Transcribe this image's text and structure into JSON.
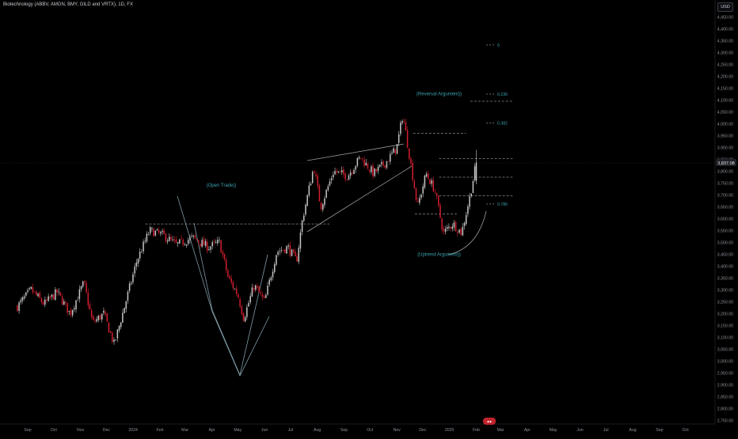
{
  "header": {
    "title": "Biotechnology (ABBV, AMGN, BMY, GILD and VRTX), 1D, FX",
    "currency": "USD"
  },
  "colors": {
    "background": "#000000",
    "up": "#c7c7c7",
    "down": "#d21e2e",
    "annotation": "#3aa3b0",
    "line": "#9a9a9a",
    "price_tag": "#1f2025"
  },
  "current_price": "3,837.08",
  "chart_data": {
    "type": "candlestick",
    "x_tick_labels": [
      "Sep",
      "Oct",
      "Nov",
      "Dec",
      "2024",
      "Feb",
      "Mar",
      "Apr",
      "May",
      "Jun",
      "Jul",
      "Aug",
      "Sep",
      "Oct",
      "Nov",
      "Dec",
      "2025",
      "Feb",
      "Mar",
      "Apr",
      "May",
      "Jun",
      "Jul",
      "Aug",
      "Sep",
      "Oct"
    ],
    "y_tick_labels": [
      "4,450.00",
      "4,400.00",
      "4,350.00",
      "4,300.00",
      "4,250.00",
      "4,200.00",
      "4,150.00",
      "4,100.00",
      "4,050.00",
      "4,000.00",
      "3,950.00",
      "3,900.00",
      "3,850.00",
      "3,800.00",
      "3,750.00",
      "3,700.00",
      "3,650.00",
      "3,600.00",
      "3,550.00",
      "3,500.00",
      "3,450.00",
      "3,400.00",
      "3,350.00",
      "3,300.00",
      "3,250.00",
      "3,200.00",
      "3,150.00",
      "3,100.00",
      "3,050.00",
      "3,000.00",
      "2,950.00",
      "2,900.00",
      "2,850.00",
      "2,800.00",
      "2,750.00"
    ],
    "ylim": [
      2735,
      4465
    ],
    "price_path_waypoints": [
      {
        "date": "2023-08-20",
        "price": 3230
      },
      {
        "date": "2023-09-05",
        "price": 3300
      },
      {
        "date": "2023-09-20",
        "price": 3240
      },
      {
        "date": "2023-10-05",
        "price": 3290
      },
      {
        "date": "2023-10-20",
        "price": 3200
      },
      {
        "date": "2023-11-05",
        "price": 3330
      },
      {
        "date": "2023-11-15",
        "price": 3160
      },
      {
        "date": "2023-11-28",
        "price": 3200
      },
      {
        "date": "2023-12-10",
        "price": 3070
      },
      {
        "date": "2023-12-22",
        "price": 3230
      },
      {
        "date": "2024-01-05",
        "price": 3420
      },
      {
        "date": "2024-01-20",
        "price": 3550
      },
      {
        "date": "2024-02-05",
        "price": 3530
      },
      {
        "date": "2024-02-20",
        "price": 3490
      },
      {
        "date": "2024-03-10",
        "price": 3520
      },
      {
        "date": "2024-03-28",
        "price": 3480
      },
      {
        "date": "2024-04-10",
        "price": 3500
      },
      {
        "date": "2024-04-20",
        "price": 3350
      },
      {
        "date": "2024-05-01",
        "price": 3280
      },
      {
        "date": "2024-05-08",
        "price": 3180
      },
      {
        "date": "2024-05-20",
        "price": 3320
      },
      {
        "date": "2024-06-01",
        "price": 3250
      },
      {
        "date": "2024-06-15",
        "price": 3460
      },
      {
        "date": "2024-06-28",
        "price": 3480
      },
      {
        "date": "2024-07-08",
        "price": 3420
      },
      {
        "date": "2024-07-15",
        "price": 3600
      },
      {
        "date": "2024-07-28",
        "price": 3820
      },
      {
        "date": "2024-08-05",
        "price": 3650
      },
      {
        "date": "2024-08-20",
        "price": 3800
      },
      {
        "date": "2024-09-05",
        "price": 3780
      },
      {
        "date": "2024-09-20",
        "price": 3860
      },
      {
        "date": "2024-10-05",
        "price": 3790
      },
      {
        "date": "2024-10-20",
        "price": 3840
      },
      {
        "date": "2024-11-01",
        "price": 3900
      },
      {
        "date": "2024-11-08",
        "price": 4040
      },
      {
        "date": "2024-11-15",
        "price": 3880
      },
      {
        "date": "2024-11-25",
        "price": 3650
      },
      {
        "date": "2024-12-05",
        "price": 3790
      },
      {
        "date": "2024-12-15",
        "price": 3720
      },
      {
        "date": "2024-12-25",
        "price": 3540
      },
      {
        "date": "2025-01-05",
        "price": 3580
      },
      {
        "date": "2025-01-15",
        "price": 3540
      },
      {
        "date": "2025-01-25",
        "price": 3700
      },
      {
        "date": "2025-02-01",
        "price": 3837
      }
    ],
    "annotations": [
      {
        "text": "(Open Trade))",
        "date": "2024-04-12",
        "price": 3735
      },
      {
        "text": "(Reversal Argument))",
        "date": "2024-12-20",
        "price": 4120
      },
      {
        "text": "(Uptrend Argument))",
        "date": "2024-12-20",
        "price": 3443
      }
    ],
    "fib_labels": [
      {
        "text": "0",
        "price": 4332
      },
      {
        "text": "0.236",
        "price": 4125
      },
      {
        "text": "0.382",
        "price": 4003
      },
      {
        "text": "0.786",
        "price": 3662
      }
    ],
    "horizontal_levels": [
      {
        "price": 3578,
        "from": "2024-01-15",
        "to": "2024-08-15"
      },
      {
        "price": 3960,
        "from": "2024-11-20",
        "to": "2025-01-20"
      },
      {
        "price": 4095,
        "from": "2025-01-25",
        "to": "2025-03-15"
      },
      {
        "price": 3853,
        "from": "2024-12-20",
        "to": "2025-03-15"
      },
      {
        "price": 3775,
        "from": "2024-12-20",
        "to": "2025-03-15"
      },
      {
        "price": 3697,
        "from": "2024-12-20",
        "to": "2025-03-15"
      },
      {
        "price": 3620,
        "from": "2024-11-22",
        "to": "2025-01-10"
      }
    ]
  },
  "footer": {
    "badge": "●●"
  }
}
